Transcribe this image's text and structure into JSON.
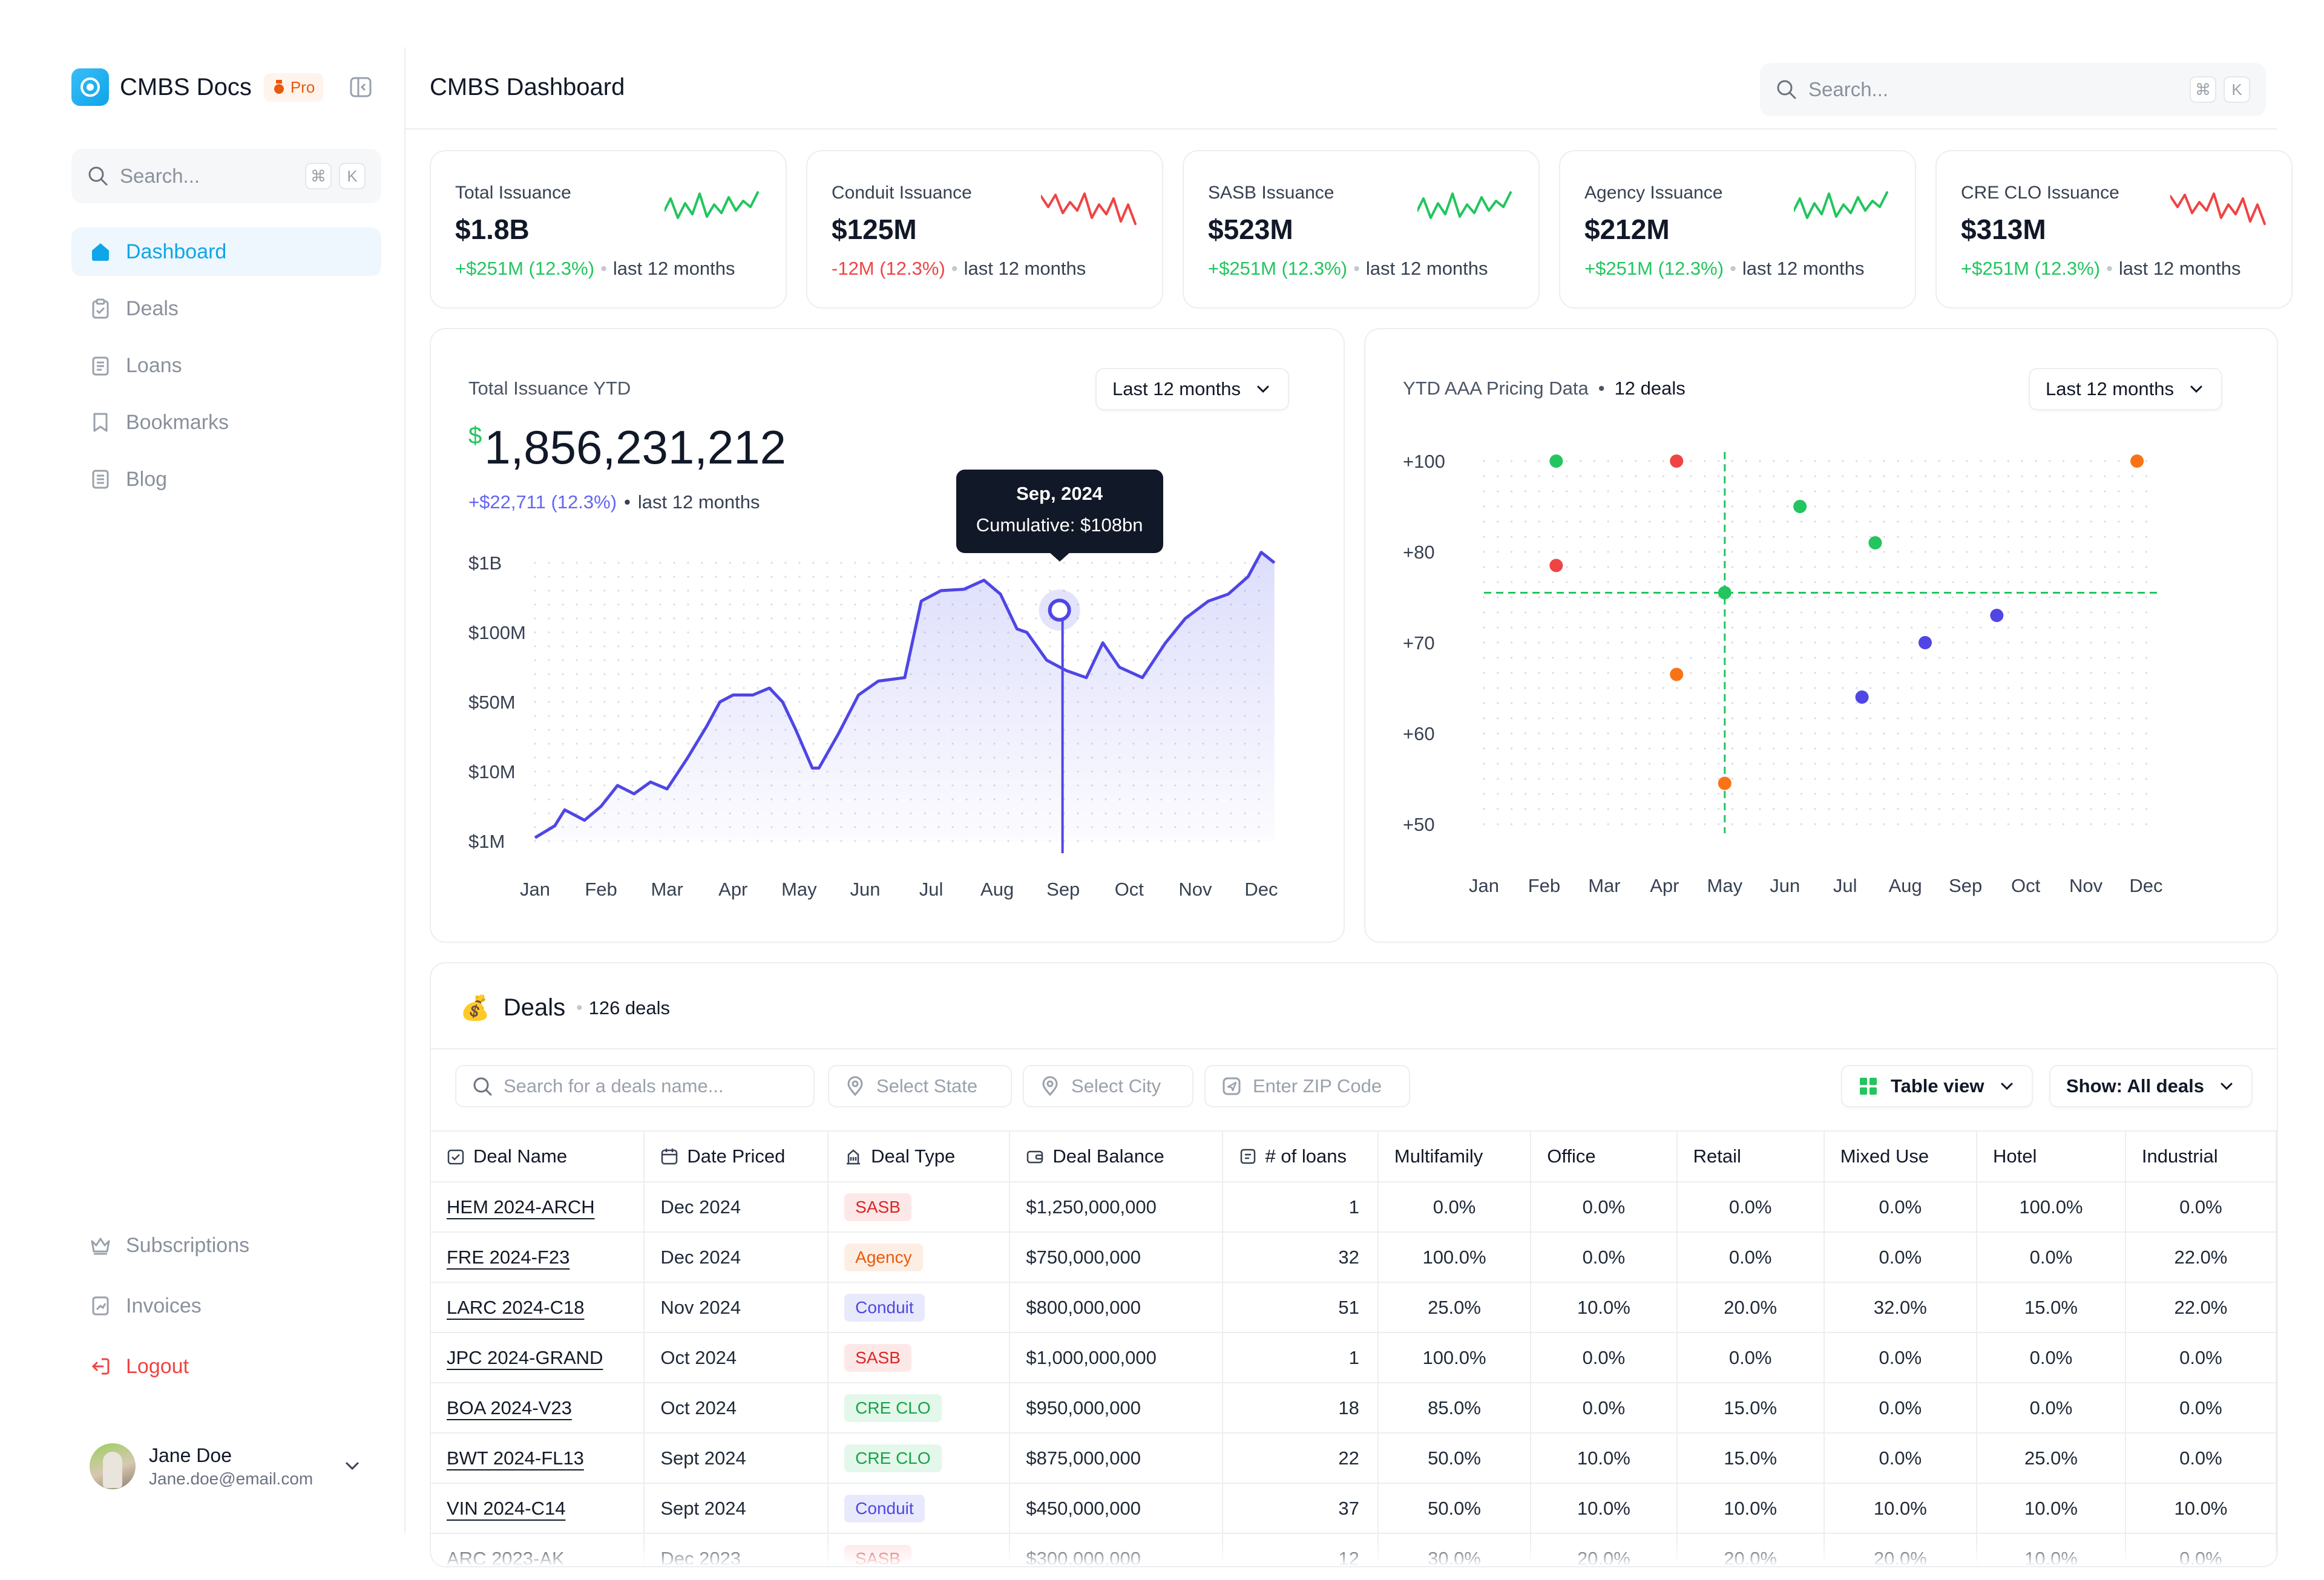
{
  "sidebar": {
    "brand": "CMBS Docs",
    "pro_badge": "Pro",
    "search_placeholder": "Search...",
    "kbd": [
      "⌘",
      "K"
    ],
    "nav": [
      {
        "label": "Dashboard",
        "icon": "home-icon",
        "active": true
      },
      {
        "label": "Deals",
        "icon": "clipboard-icon"
      },
      {
        "label": "Loans",
        "icon": "ledger-icon"
      },
      {
        "label": "Bookmarks",
        "icon": "bookmark-icon"
      },
      {
        "label": "Blog",
        "icon": "document-icon"
      }
    ],
    "bottom_nav": [
      {
        "label": "Subscriptions",
        "icon": "crown-icon"
      },
      {
        "label": "Invoices",
        "icon": "invoice-icon"
      },
      {
        "label": "Logout",
        "icon": "logout-icon"
      }
    ],
    "user": {
      "name": "Jane Doe",
      "email": "Jane.doe@email.com"
    }
  },
  "header": {
    "title": "CMBS Dashboard",
    "search_placeholder": "Search...",
    "kbd": [
      "⌘",
      "K"
    ]
  },
  "stats": [
    {
      "label": "Total Issuance",
      "value": "$1.8B",
      "change": "+$251M (12.3%)",
      "trend": "up",
      "period": "last 12 months",
      "color": "#22c55e"
    },
    {
      "label": "Conduit Issuance",
      "value": "$125M",
      "change": "-12M (12.3%)",
      "trend": "down",
      "period": "last 12 months",
      "color": "#ef4444"
    },
    {
      "label": "SASB Issuance",
      "value": "$523M",
      "change": "+$251M (12.3%)",
      "trend": "up",
      "period": "last 12 months",
      "color": "#22c55e"
    },
    {
      "label": "Agency Issuance",
      "value": "$212M",
      "change": "+$251M (12.3%)",
      "trend": "up",
      "period": "last 12 months",
      "color": "#22c55e"
    },
    {
      "label": "CRE CLO Issuance",
      "value": "$313M",
      "change": "+$251M (12.3%)",
      "trend": "up",
      "period": "last 12 months",
      "color": "#ef4444"
    }
  ],
  "issuance_card": {
    "title": "Total Issuance YTD",
    "dropdown": "Last 12 months",
    "currency": "$",
    "value": "1,856,231,212",
    "change": "+$22,711 (12.3%)",
    "period": "last 12 months",
    "tooltip": {
      "title": "Sep, 2024",
      "body": "Cumulative: $108bn"
    }
  },
  "pricing_card": {
    "title": "YTD AAA Pricing Data",
    "count": "12 deals",
    "dropdown": "Last 12 months"
  },
  "chart_data": [
    {
      "type": "area",
      "title": "Total Issuance YTD",
      "categories": [
        "Jan",
        "Feb",
        "Mar",
        "Apr",
        "May",
        "Jun",
        "Jul",
        "Aug",
        "Sep",
        "Oct",
        "Nov",
        "Dec"
      ],
      "y_ticks": [
        "$1B",
        "$100M",
        "$50M",
        "$10M",
        "$1M"
      ],
      "y_scale": "ordinal-ticks",
      "y_tick_positions": [
        4,
        3,
        2,
        1,
        0
      ],
      "x": [
        0,
        0.3,
        0.45,
        0.75,
        1,
        1.25,
        1.5,
        1.75,
        2.0,
        2.3,
        2.6,
        2.8,
        3.0,
        3.3,
        3.55,
        3.75,
        3.95,
        4.2,
        4.3,
        4.6,
        4.9,
        5.2,
        5.6,
        5.85,
        6.15,
        6.5,
        6.8,
        7.05,
        7.3,
        7.45,
        7.75,
        8.05,
        8.35,
        8.6,
        8.85,
        9.2,
        9.55,
        9.85,
        10.2,
        10.5,
        10.8,
        11.0,
        11.2
      ],
      "values": [
        0.05,
        0.22,
        0.45,
        0.3,
        0.5,
        0.8,
        0.68,
        0.85,
        0.75,
        1.18,
        1.65,
        2.0,
        2.1,
        2.1,
        2.2,
        2.0,
        1.6,
        1.05,
        1.05,
        1.55,
        2.1,
        2.3,
        2.35,
        3.45,
        3.6,
        3.62,
        3.75,
        3.55,
        3.05,
        3.0,
        2.6,
        2.45,
        2.35,
        2.85,
        2.5,
        2.35,
        2.85,
        3.2,
        3.45,
        3.55,
        3.8,
        4.15,
        4.0
      ],
      "highlight": {
        "category": "Sep",
        "label": "Cumulative: $108bn"
      }
    },
    {
      "type": "scatter",
      "title": "YTD AAA Pricing Data",
      "categories": [
        "Jan",
        "Feb",
        "Mar",
        "Apr",
        "May",
        "Jun",
        "Jul",
        "Aug",
        "Sep",
        "Oct",
        "Nov",
        "Dec"
      ],
      "y_ticks": [
        "+100",
        "+80",
        "+70",
        "+60",
        "+50"
      ],
      "y_tick_positions": [
        4,
        3,
        2,
        1,
        0
      ],
      "points": [
        {
          "month": "Feb",
          "y": 4.0,
          "color": "#22c55e"
        },
        {
          "month": "Feb",
          "y": 2.85,
          "color": "#ef4444"
        },
        {
          "month": "Apr",
          "y": 4.0,
          "color": "#ef4444"
        },
        {
          "month": "Apr",
          "y": 1.65,
          "color": "#f97316"
        },
        {
          "month": "May",
          "y": 2.55,
          "color": "#22c55e"
        },
        {
          "month": "May",
          "y": 0.45,
          "color": "#f97316"
        },
        {
          "month": "Jun",
          "y": 3.5,
          "color": "#22c55e"
        },
        {
          "month": "Jul",
          "y": 1.4,
          "color": "#4f46e5"
        },
        {
          "month": "Jul",
          "y": 3.1,
          "color": "#22c55e"
        },
        {
          "month": "Aug",
          "y": 2.0,
          "color": "#4f46e5"
        },
        {
          "month": "Sep",
          "y": 2.3,
          "color": "#4f46e5"
        },
        {
          "month": "Dec",
          "y": 4.0,
          "color": "#f97316"
        }
      ],
      "crosshair": {
        "month": "May",
        "y": 2.55
      }
    }
  ],
  "deals": {
    "title": "Deals",
    "count": "126 deals",
    "filters": {
      "search": "Search for a deals name...",
      "state": "Select State",
      "city": "Select City",
      "zip": "Enter ZIP Code"
    },
    "view": "Table view",
    "show": "Show: All deals",
    "columns": [
      "Deal Name",
      "Date Priced",
      "Deal Type",
      "Deal Balance",
      "# of loans",
      "Multifamily",
      "Office",
      "Retail",
      "Mixed Use",
      "Hotel",
      "Industrial"
    ],
    "rows": [
      [
        "HEM 2024-ARCH",
        "Dec 2024",
        "SASB",
        "$1,250,000,000",
        "1",
        "0.0%",
        "0.0%",
        "0.0%",
        "0.0%",
        "100.0%",
        "0.0%"
      ],
      [
        "FRE 2024-F23",
        "Dec 2024",
        "Agency",
        "$750,000,000",
        "32",
        "100.0%",
        "0.0%",
        "0.0%",
        "0.0%",
        "0.0%",
        "22.0%"
      ],
      [
        "LARC 2024-C18",
        "Nov 2024",
        "Conduit",
        "$800,000,000",
        "51",
        "25.0%",
        "10.0%",
        "20.0%",
        "32.0%",
        "15.0%",
        "22.0%"
      ],
      [
        "JPC 2024-GRAND",
        "Oct 2024",
        "SASB",
        "$1,000,000,000",
        "1",
        "100.0%",
        "0.0%",
        "0.0%",
        "0.0%",
        "0.0%",
        "0.0%"
      ],
      [
        "BOA 2024-V23",
        "Oct 2024",
        "CRE CLO",
        "$950,000,000",
        "18",
        "85.0%",
        "0.0%",
        "15.0%",
        "0.0%",
        "0.0%",
        "0.0%"
      ],
      [
        "BWT 2024-FL13",
        "Sept 2024",
        "CRE CLO",
        "$875,000,000",
        "22",
        "50.0%",
        "10.0%",
        "15.0%",
        "0.0%",
        "25.0%",
        "0.0%"
      ],
      [
        "VIN 2024-C14",
        "Sept 2024",
        "Conduit",
        "$450,000,000",
        "37",
        "50.0%",
        "10.0%",
        "10.0%",
        "10.0%",
        "10.0%",
        "10.0%"
      ],
      [
        "ARC 2023-AK",
        "Dec 2023",
        "SASB",
        "$300,000,000",
        "12",
        "30.0%",
        "20.0%",
        "20.0%",
        "20.0%",
        "10.0%",
        "0.0%"
      ]
    ]
  }
}
